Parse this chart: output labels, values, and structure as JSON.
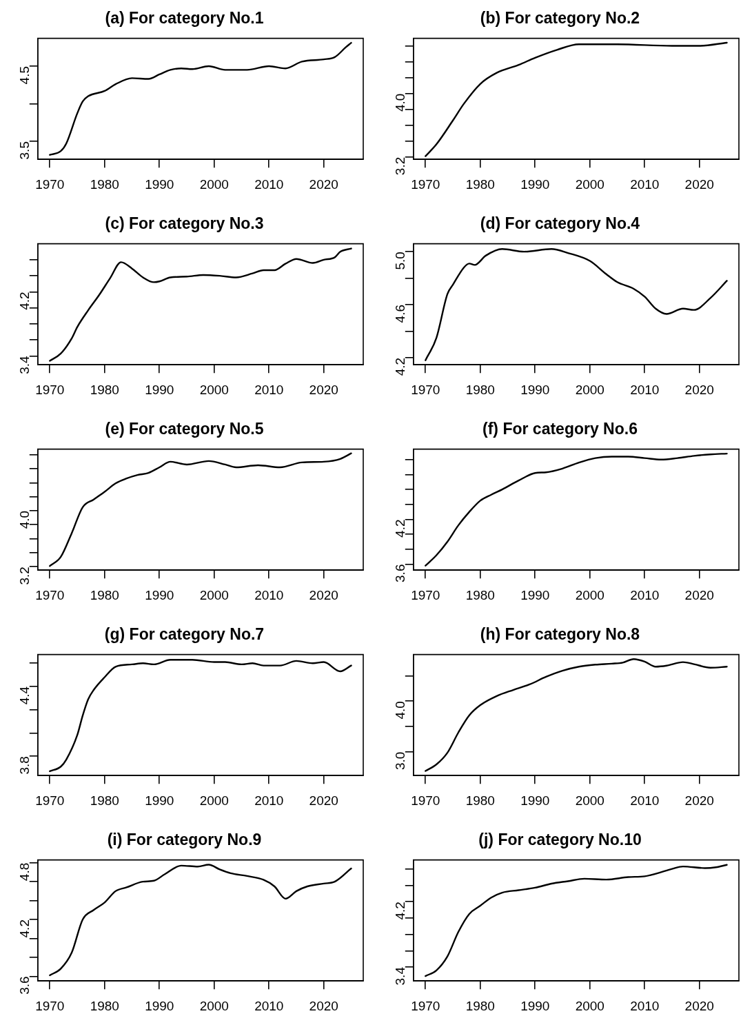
{
  "chart_data": [
    {
      "type": "line",
      "title": "(a) For category No.1",
      "color": "#000000",
      "xlim": [
        1967.8,
        2027.2
      ],
      "xticks": [
        1970,
        1980,
        1990,
        2000,
        2010,
        2020
      ],
      "ylim": [
        3.26,
        4.87
      ],
      "yticks": [
        {
          "value": 3.5,
          "label": "3.5"
        },
        {
          "value": 4,
          "label": null
        },
        {
          "value": 4.5,
          "label": "4.5"
        }
      ],
      "x": [
        1970,
        1972,
        1973,
        1975,
        1976,
        1977,
        1980,
        1982,
        1985,
        1988,
        1990,
        1992,
        1994,
        1996,
        1999,
        2002,
        2006,
        2010,
        2013,
        2016,
        2020,
        2022,
        2024,
        2025
      ],
      "values": [
        3.32,
        3.37,
        3.47,
        3.87,
        4.03,
        4.1,
        4.17,
        4.26,
        4.34,
        4.33,
        4.39,
        4.45,
        4.47,
        4.46,
        4.5,
        4.45,
        4.45,
        4.5,
        4.47,
        4.56,
        4.59,
        4.62,
        4.75,
        4.81
      ]
    },
    {
      "type": "line",
      "title": "(b) For category No.2",
      "color": "#000000",
      "xlim": [
        1967.8,
        2027.2
      ],
      "xticks": [
        1970,
        1980,
        1990,
        2000,
        2010,
        2020
      ],
      "ylim": [
        3.17,
        4.695
      ],
      "yticks": [
        {
          "value": 3.2,
          "label": "3.2"
        },
        {
          "value": 3.4,
          "label": null
        },
        {
          "value": 3.6,
          "label": null
        },
        {
          "value": 3.8,
          "label": null
        },
        {
          "value": 4,
          "label": "4.0"
        },
        {
          "value": 4.2,
          "label": null
        },
        {
          "value": 4.4,
          "label": null
        },
        {
          "value": 4.6,
          "label": null
        }
      ],
      "x": [
        1970,
        1972,
        1975,
        1977,
        1980,
        1983,
        1987,
        1990,
        1994,
        1998,
        2005,
        2015,
        2020,
        2025
      ],
      "values": [
        3.21,
        3.36,
        3.66,
        3.87,
        4.12,
        4.26,
        4.36,
        4.45,
        4.55,
        4.62,
        4.62,
        4.6,
        4.6,
        4.64
      ]
    },
    {
      "type": "line",
      "title": "(c) For category No.3",
      "color": "#000000",
      "xlim": [
        1967.8,
        2027.2
      ],
      "xticks": [
        1970,
        1980,
        1990,
        2000,
        2010,
        2020
      ],
      "ylim": [
        3.29,
        4.8
      ],
      "yticks": [
        {
          "value": 3.4,
          "label": "3.4"
        },
        {
          "value": 3.6,
          "label": null
        },
        {
          "value": 3.8,
          "label": null
        },
        {
          "value": 4,
          "label": null
        },
        {
          "value": 4.2,
          "label": "4.2"
        },
        {
          "value": 4.4,
          "label": null
        },
        {
          "value": 4.6,
          "label": null
        }
      ],
      "x": [
        1970,
        1972,
        1974,
        1975,
        1977,
        1979,
        1981,
        1983,
        1985,
        1987,
        1989,
        1990,
        1992,
        1995,
        1998,
        2001,
        2004,
        2007,
        2009,
        2011,
        2013,
        2015,
        2018,
        2020,
        2022,
        2023,
        2025
      ],
      "values": [
        3.34,
        3.43,
        3.62,
        3.76,
        3.97,
        4.16,
        4.37,
        4.57,
        4.49,
        4.38,
        4.32,
        4.33,
        4.38,
        4.39,
        4.41,
        4.4,
        4.38,
        4.43,
        4.47,
        4.47,
        4.55,
        4.61,
        4.56,
        4.6,
        4.63,
        4.7,
        4.74
      ]
    },
    {
      "type": "line",
      "title": "(d) For category No.4",
      "color": "#000000",
      "xlim": [
        1967.8,
        2027.2
      ],
      "xticks": [
        1970,
        1980,
        1990,
        2000,
        2010,
        2020
      ],
      "ylim": [
        4.146,
        5.06
      ],
      "yticks": [
        {
          "value": 4.2,
          "label": "4.2"
        },
        {
          "value": 4.4,
          "label": null
        },
        {
          "value": 4.6,
          "label": "4.6"
        },
        {
          "value": 4.8,
          "label": null
        },
        {
          "value": 5,
          "label": "5.0"
        }
      ],
      "x": [
        1970,
        1972,
        1974,
        1975,
        1977,
        1978,
        1979,
        1981,
        1984,
        1988,
        1993,
        1996,
        2000,
        2003,
        2005,
        2008,
        2010,
        2012,
        2014,
        2017,
        2019,
        2022,
        2025
      ],
      "values": [
        4.18,
        4.35,
        4.68,
        4.75,
        4.88,
        4.91,
        4.9,
        4.97,
        5.02,
        5,
        5.02,
        4.99,
        4.93,
        4.83,
        4.77,
        4.72,
        4.66,
        4.57,
        4.53,
        4.57,
        4.56,
        4.65,
        4.78
      ]
    },
    {
      "type": "line",
      "title": "(e) For category No.5",
      "color": "#000000",
      "xlim": [
        1967.8,
        2027.2
      ],
      "xticks": [
        1970,
        1980,
        1990,
        2000,
        2010,
        2020
      ],
      "ylim": [
        3.15,
        4.88
      ],
      "yticks": [
        {
          "value": 3.2,
          "label": "3.2"
        },
        {
          "value": 3.4,
          "label": null
        },
        {
          "value": 3.6,
          "label": null
        },
        {
          "value": 3.8,
          "label": null
        },
        {
          "value": 4,
          "label": "4.0"
        },
        {
          "value": 4.2,
          "label": null
        },
        {
          "value": 4.4,
          "label": null
        },
        {
          "value": 4.6,
          "label": null
        },
        {
          "value": 4.8,
          "label": null
        }
      ],
      "x": [
        1970,
        1972,
        1974,
        1976,
        1978,
        1980,
        1982,
        1984,
        1986,
        1988,
        1990,
        1992,
        1995,
        1999,
        2002,
        2004,
        2008,
        2012,
        2016,
        2020,
        2023,
        2025
      ],
      "values": [
        3.21,
        3.34,
        3.68,
        4.05,
        4.16,
        4.27,
        4.39,
        4.46,
        4.51,
        4.54,
        4.62,
        4.7,
        4.66,
        4.71,
        4.66,
        4.62,
        4.65,
        4.62,
        4.69,
        4.7,
        4.74,
        4.82
      ]
    },
    {
      "type": "line",
      "title": "(f) For category No.6",
      "color": "#000000",
      "xlim": [
        1967.8,
        2027.2
      ],
      "xticks": [
        1970,
        1980,
        1990,
        2000,
        2010,
        2020
      ],
      "ylim": [
        3.52,
        5.14
      ],
      "yticks": [
        {
          "value": 3.6,
          "label": "3.6"
        },
        {
          "value": 3.8,
          "label": null
        },
        {
          "value": 4,
          "label": null
        },
        {
          "value": 4.2,
          "label": "4.2"
        },
        {
          "value": 4.4,
          "label": null
        },
        {
          "value": 4.6,
          "label": null
        },
        {
          "value": 4.8,
          "label": null
        },
        {
          "value": 5,
          "label": null
        }
      ],
      "x": [
        1970,
        1972,
        1974,
        1976,
        1978,
        1980,
        1982,
        1984,
        1987,
        1990,
        1992,
        1995,
        1998,
        2001,
        2004,
        2007,
        2010,
        2013,
        2016,
        2019,
        2022,
        2025
      ],
      "values": [
        3.58,
        3.72,
        3.9,
        4.12,
        4.3,
        4.45,
        4.53,
        4.6,
        4.72,
        4.82,
        4.83,
        4.88,
        4.96,
        5.02,
        5.04,
        5.04,
        5.02,
        5,
        5.02,
        5.05,
        5.07,
        5.08
      ]
    },
    {
      "type": "line",
      "title": "(g) For category No.7",
      "color": "#000000",
      "xlim": [
        1967.8,
        2027.2
      ],
      "xticks": [
        1970,
        1980,
        1990,
        2000,
        2010,
        2020
      ],
      "ylim": [
        3.633,
        4.675
      ],
      "yticks": [
        {
          "value": 3.8,
          "label": "3.8"
        },
        {
          "value": 4,
          "label": null
        },
        {
          "value": 4.2,
          "label": null
        },
        {
          "value": 4.4,
          "label": "4.4"
        },
        {
          "value": 4.6,
          "label": null
        }
      ],
      "x": [
        1970,
        1972,
        1973,
        1975,
        1976,
        1977,
        1978,
        1980,
        1982,
        1985,
        1987,
        1989,
        1992,
        1996,
        2000,
        2002,
        2005,
        2007,
        2009,
        2012,
        2015,
        2018,
        2020,
        2023,
        2025
      ],
      "values": [
        3.67,
        3.71,
        3.77,
        3.98,
        4.15,
        4.29,
        4.37,
        4.48,
        4.57,
        4.59,
        4.6,
        4.59,
        4.63,
        4.63,
        4.61,
        4.61,
        4.59,
        4.6,
        4.58,
        4.58,
        4.62,
        4.6,
        4.61,
        4.53,
        4.58
      ]
    },
    {
      "type": "line",
      "title": "(h) For category No.8",
      "color": "#000000",
      "xlim": [
        1967.8,
        2027.2
      ],
      "xticks": [
        1970,
        1980,
        1990,
        2000,
        2010,
        2020
      ],
      "ylim": [
        2.53,
        4.92
      ],
      "yticks": [
        {
          "value": 3,
          "label": "3.0"
        },
        {
          "value": 3.5,
          "label": null
        },
        {
          "value": 4,
          "label": "4.0"
        },
        {
          "value": 4.5,
          "label": null
        }
      ],
      "x": [
        1970,
        1972,
        1974,
        1976,
        1978,
        1980,
        1983,
        1986,
        1989,
        1992,
        1995,
        1998,
        2001,
        2004,
        2006,
        2008,
        2010,
        2012,
        2014,
        2017,
        2019,
        2022,
        2025
      ],
      "values": [
        2.62,
        2.75,
        2.98,
        3.38,
        3.72,
        3.92,
        4.1,
        4.22,
        4.33,
        4.48,
        4.6,
        4.68,
        4.72,
        4.74,
        4.76,
        4.83,
        4.78,
        4.68,
        4.7,
        4.77,
        4.73,
        4.66,
        4.68
      ]
    },
    {
      "type": "line",
      "title": "(i) For category No.9",
      "color": "#000000",
      "xlim": [
        1967.8,
        2027.2
      ],
      "xticks": [
        1970,
        1980,
        1990,
        2000,
        2010,
        2020
      ],
      "ylim": [
        3.55,
        4.83
      ],
      "yticks": [
        {
          "value": 3.6,
          "label": "3.6"
        },
        {
          "value": 3.8,
          "label": null
        },
        {
          "value": 4,
          "label": null
        },
        {
          "value": 4.2,
          "label": "4.2"
        },
        {
          "value": 4.4,
          "label": null
        },
        {
          "value": 4.6,
          "label": null
        },
        {
          "value": 4.8,
          "label": "4.8"
        }
      ],
      "x": [
        1970,
        1972,
        1974,
        1976,
        1978,
        1980,
        1982,
        1984,
        1987,
        1989,
        1991,
        1994,
        1997,
        1999,
        2001,
        2003,
        2006,
        2009,
        2011,
        2013,
        2015,
        2017,
        2020,
        2022,
        2025
      ],
      "values": [
        3.61,
        3.68,
        3.85,
        4.2,
        4.3,
        4.38,
        4.5,
        4.54,
        4.6,
        4.61,
        4.68,
        4.77,
        4.76,
        4.78,
        4.73,
        4.69,
        4.66,
        4.62,
        4.55,
        4.42,
        4.5,
        4.55,
        4.58,
        4.6,
        4.74
      ]
    },
    {
      "type": "line",
      "title": "(j) For category No.10",
      "color": "#000000",
      "xlim": [
        1967.8,
        2027.2
      ],
      "xticks": [
        1970,
        1980,
        1990,
        2000,
        2010,
        2020
      ],
      "ylim": [
        3.23,
        4.71
      ],
      "yticks": [
        {
          "value": 3.4,
          "label": "3.4"
        },
        {
          "value": 3.6,
          "label": null
        },
        {
          "value": 3.8,
          "label": null
        },
        {
          "value": 4,
          "label": null
        },
        {
          "value": 4.2,
          "label": "4.2"
        },
        {
          "value": 4.4,
          "label": null
        },
        {
          "value": 4.6,
          "label": null
        }
      ],
      "x": [
        1970,
        1972,
        1974,
        1976,
        1978,
        1980,
        1982,
        1984,
        1987,
        1990,
        1993,
        1996,
        1999,
        2003,
        2007,
        2010,
        2013,
        2015,
        2017,
        2021,
        2023,
        2025
      ],
      "values": [
        3.29,
        3.36,
        3.53,
        3.83,
        4.05,
        4.15,
        4.25,
        4.31,
        4.34,
        4.37,
        4.42,
        4.45,
        4.48,
        4.47,
        4.5,
        4.51,
        4.56,
        4.6,
        4.63,
        4.61,
        4.62,
        4.65
      ]
    }
  ]
}
